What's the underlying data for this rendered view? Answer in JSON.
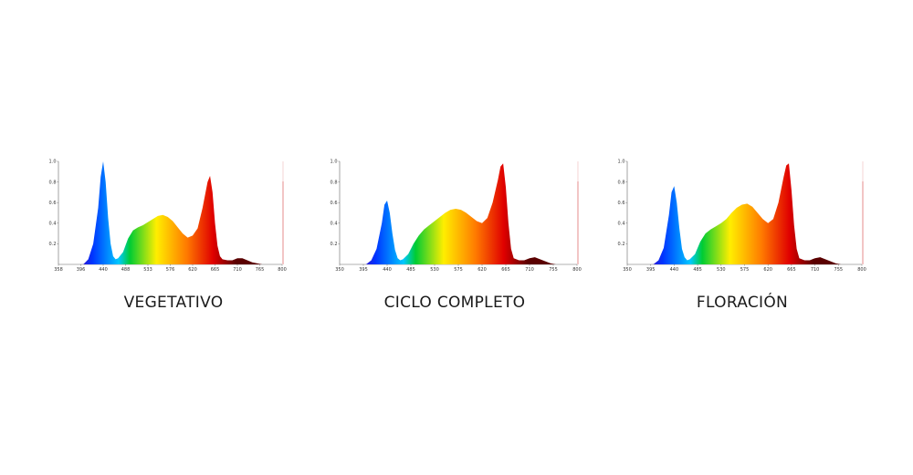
{
  "chart_data": [
    {
      "type": "area",
      "title": "VEGETATIVO",
      "x_ticks": [
        "358",
        "396",
        "440",
        "488",
        "533",
        "576",
        "620",
        "665",
        "710",
        "765",
        "800"
      ],
      "y_ticks": [
        "1.0",
        "0.8",
        "0.6",
        "0.4",
        "0.2"
      ],
      "xlim": [
        350,
        800
      ],
      "ylim": [
        0,
        1.0
      ],
      "x": [
        350,
        400,
        410,
        420,
        430,
        435,
        440,
        445,
        450,
        455,
        460,
        465,
        470,
        480,
        490,
        500,
        510,
        520,
        530,
        540,
        550,
        560,
        570,
        580,
        590,
        600,
        610,
        620,
        630,
        640,
        650,
        655,
        660,
        665,
        670,
        675,
        680,
        690,
        700,
        710,
        720,
        730,
        740,
        750,
        760,
        770,
        800
      ],
      "y": [
        0,
        0,
        0.05,
        0.2,
        0.55,
        0.85,
        1.0,
        0.8,
        0.45,
        0.2,
        0.08,
        0.05,
        0.06,
        0.12,
        0.25,
        0.33,
        0.36,
        0.38,
        0.41,
        0.44,
        0.47,
        0.48,
        0.46,
        0.42,
        0.36,
        0.3,
        0.26,
        0.28,
        0.35,
        0.55,
        0.8,
        0.86,
        0.7,
        0.4,
        0.18,
        0.08,
        0.05,
        0.04,
        0.04,
        0.06,
        0.06,
        0.04,
        0.02,
        0.01,
        0,
        0,
        0
      ]
    },
    {
      "type": "area",
      "title": "CICLO COMPLETO",
      "x_ticks": [
        "350",
        "395",
        "440",
        "485",
        "530",
        "575",
        "620",
        "665",
        "710",
        "755",
        "800"
      ],
      "y_ticks": [
        "1.0",
        "0.8",
        "0.6",
        "0.4",
        "0.2"
      ],
      "xlim": [
        350,
        800
      ],
      "ylim": [
        0,
        1.0
      ],
      "x": [
        350,
        400,
        410,
        420,
        430,
        435,
        440,
        445,
        450,
        455,
        460,
        465,
        470,
        480,
        490,
        500,
        510,
        520,
        530,
        540,
        550,
        560,
        570,
        580,
        590,
        600,
        610,
        620,
        630,
        640,
        650,
        655,
        660,
        665,
        670,
        675,
        680,
        690,
        700,
        710,
        720,
        730,
        740,
        750,
        760,
        770,
        800
      ],
      "y": [
        0,
        0,
        0.04,
        0.15,
        0.4,
        0.58,
        0.62,
        0.5,
        0.3,
        0.14,
        0.06,
        0.04,
        0.05,
        0.1,
        0.2,
        0.28,
        0.34,
        0.38,
        0.42,
        0.46,
        0.5,
        0.53,
        0.54,
        0.53,
        0.5,
        0.46,
        0.42,
        0.4,
        0.45,
        0.6,
        0.82,
        0.95,
        0.98,
        0.75,
        0.4,
        0.15,
        0.06,
        0.04,
        0.04,
        0.06,
        0.07,
        0.05,
        0.03,
        0.01,
        0,
        0,
        0
      ]
    },
    {
      "type": "area",
      "title": "FLORACIÓN",
      "x_ticks": [
        "350",
        "395",
        "440",
        "485",
        "530",
        "575",
        "620",
        "665",
        "710",
        "755",
        "800"
      ],
      "y_ticks": [
        "1.0",
        "0.8",
        "0.6",
        "0.4",
        "0.2"
      ],
      "xlim": [
        350,
        800
      ],
      "ylim": [
        0,
        1.0
      ],
      "x": [
        350,
        400,
        410,
        420,
        430,
        435,
        440,
        445,
        450,
        455,
        460,
        465,
        470,
        480,
        490,
        500,
        510,
        520,
        530,
        540,
        550,
        560,
        570,
        580,
        590,
        600,
        610,
        620,
        630,
        640,
        650,
        655,
        660,
        665,
        670,
        675,
        680,
        690,
        700,
        710,
        720,
        730,
        740,
        750,
        760,
        770,
        800
      ],
      "y": [
        0,
        0,
        0.04,
        0.16,
        0.48,
        0.7,
        0.76,
        0.6,
        0.35,
        0.15,
        0.07,
        0.04,
        0.05,
        0.1,
        0.22,
        0.3,
        0.34,
        0.37,
        0.4,
        0.44,
        0.5,
        0.55,
        0.58,
        0.59,
        0.56,
        0.5,
        0.44,
        0.4,
        0.44,
        0.6,
        0.85,
        0.96,
        0.98,
        0.72,
        0.38,
        0.15,
        0.06,
        0.04,
        0.04,
        0.06,
        0.07,
        0.05,
        0.03,
        0.01,
        0,
        0,
        0
      ]
    }
  ],
  "captions": [
    "VEGETATIVO",
    "CICLO COMPLETO",
    "FLORACIÓN"
  ],
  "colors": {
    "violet": "#5a00a8",
    "blue": "#0033ff",
    "cyan": "#00c8ff",
    "green": "#00cc33",
    "yellow": "#ffee00",
    "orange": "#ff7a00",
    "red": "#e00000",
    "dark_red": "#5a0000"
  }
}
